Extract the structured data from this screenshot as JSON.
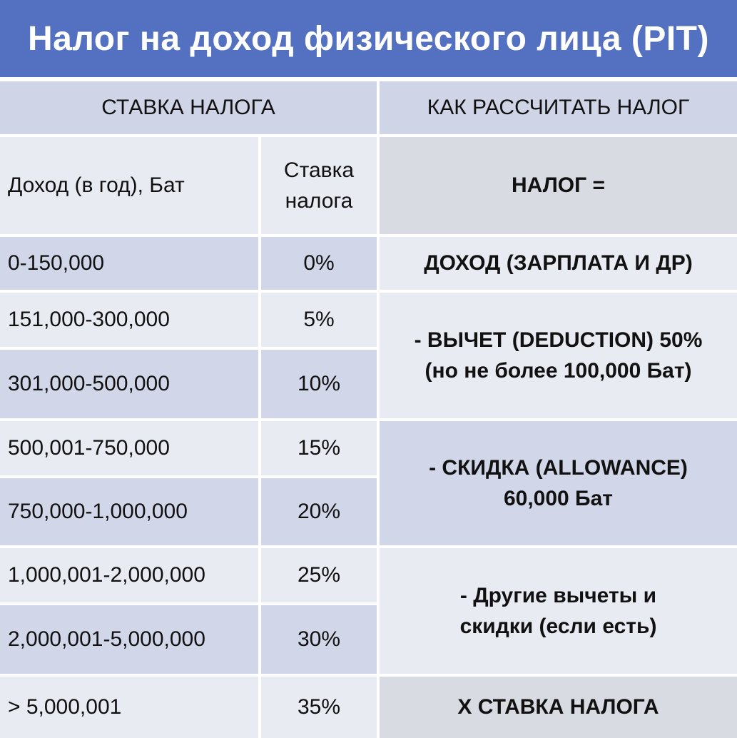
{
  "title": "Налог на доход физического лица (PIT)",
  "colors": {
    "title_bg": "#5470c0",
    "header_bg": "#cfd4e6",
    "row_dark": "#d1d6e8",
    "row_light": "#e9ebf3",
    "formula_gray": "#d9dbe2"
  },
  "table": {
    "header_left": "СТАВКА НАЛОГА",
    "header_right": "КАК РАССЧИТАТЬ НАЛОГ",
    "col_income": "Доход (в год), Бат",
    "col_rate": "Ставка налога",
    "rows": [
      {
        "income": "0-150,000",
        "rate": "0%"
      },
      {
        "income": "151,000-300,000",
        "rate": "5%"
      },
      {
        "income": "301,000-500,000",
        "rate": "10%"
      },
      {
        "income": "500,001-750,000",
        "rate": "15%"
      },
      {
        "income": "750,000-1,000,000",
        "rate": "20%"
      },
      {
        "income": "1,000,001-2,000,000",
        "rate": "25%"
      },
      {
        "income": "2,000,001-5,000,000",
        "rate": "30%"
      },
      {
        "income": "> 5,000,001",
        "rate": "35%"
      }
    ]
  },
  "formula": {
    "tax_eq": "НАЛОГ =",
    "income": "ДОХОД (ЗАРПЛАТА И ДР)",
    "deduction": "- ВЫЧЕТ (DEDUCTION) 50% (но не более 100,000 Бат)",
    "allowance": "- СКИДКА (ALLOWANCE) 60,000 Бат",
    "other": "- Другие вычеты и скидки (если есть)",
    "times_rate": "X СТАВКА НАЛОГА"
  }
}
